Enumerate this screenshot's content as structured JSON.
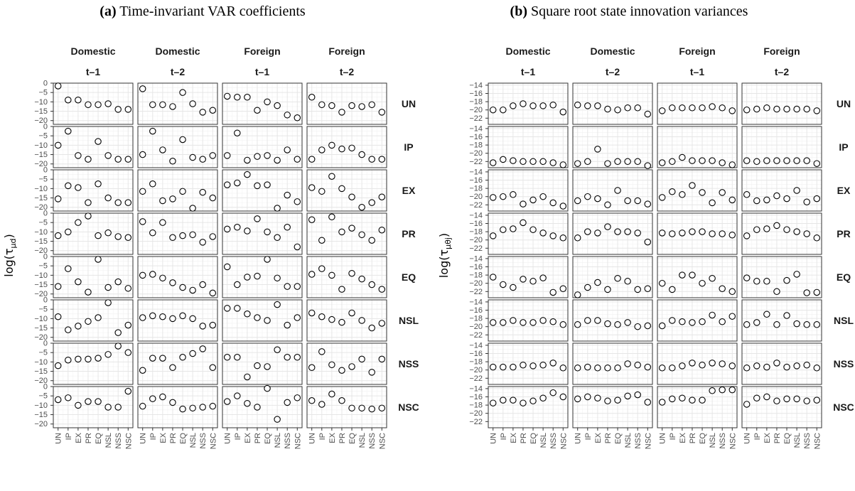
{
  "chart_data": [
    {
      "type": "scatter",
      "title_label": "(a)",
      "title": "Time-invariant VAR coefficients",
      "ylabel": "log(τμd)",
      "ylabel_base": "log(τ",
      "ylabel_sub": "μd",
      "ylabel_close": ")",
      "ylim": [
        -22,
        0
      ],
      "yticks": [
        0,
        -5,
        -10,
        -15,
        -20
      ],
      "col_groups": [
        "Domestic",
        "Domestic",
        "Foreign",
        "Foreign"
      ],
      "col_lags": [
        "t–1",
        "t–2",
        "t–1",
        "t–2"
      ],
      "rows": [
        "UN",
        "IP",
        "EX",
        "PR",
        "EQ",
        "NSL",
        "NSS",
        "NSC"
      ],
      "x": [
        "UN",
        "IP",
        "EX",
        "PR",
        "EQ",
        "NSL",
        "NSS",
        "NSC"
      ],
      "values": [
        [
          [
            -1.5,
            -9,
            -9,
            -11.5,
            -11.5,
            -11,
            -14,
            -14
          ],
          [
            -3,
            -11.5,
            -11.5,
            -12.5,
            -5,
            -11,
            -15.5,
            -14.5
          ],
          [
            -7,
            -7.5,
            -7.5,
            -14.5,
            -10,
            -12,
            -17,
            -18.5
          ],
          [
            -7.5,
            -11.5,
            -12,
            -15.5,
            -12,
            -12.5,
            -11.5,
            -15.5
          ]
        ],
        [
          [
            -10,
            -2.5,
            -15.5,
            -17.5,
            -8,
            -15.5,
            -17.5,
            -17.5
          ],
          [
            -15,
            -2.5,
            -12.5,
            -18.5,
            -7,
            -16.5,
            -17.5,
            -15.5
          ],
          [
            -15.5,
            -3.5,
            -18,
            -16,
            -15.5,
            -18,
            -12.5,
            -17.5
          ],
          [
            -17.5,
            -12.5,
            -10,
            -12,
            -11.5,
            -15,
            -17.5,
            -17.5
          ]
        ],
        [
          [
            -15.5,
            -8.5,
            -9.5,
            -17.5,
            -7.5,
            -15,
            -17.5,
            -17.5
          ],
          [
            -11.5,
            -7.5,
            -16.5,
            -15.5,
            -11.5,
            -20.5,
            -12,
            -15
          ],
          [
            -8,
            -7,
            -2.5,
            -8.5,
            -8,
            -20.5,
            -13.5,
            -17
          ],
          [
            -9.5,
            -11.5,
            -3.5,
            -10,
            -14.5,
            -20,
            -17.5,
            -14.5
          ]
        ],
        [
          [
            -12,
            -10,
            -5,
            -1.5,
            -12,
            -10.5,
            -12.5,
            -13
          ],
          [
            -4.5,
            -10.5,
            -5,
            -13,
            -12,
            -11.5,
            -15.5,
            -12.5
          ],
          [
            -8.5,
            -7.5,
            -9.5,
            -3,
            -10,
            -13,
            -7.5,
            -18
          ],
          [
            -3.5,
            -14.5,
            -2,
            -10,
            -8,
            -11.5,
            -14.5,
            -9
          ]
        ],
        [
          [
            -16,
            -6.5,
            -13.5,
            -19,
            -1.5,
            -16.5,
            -13.5,
            -17
          ],
          [
            -10,
            -9.5,
            -11.5,
            -14,
            -16.5,
            -18,
            -15,
            -19.5
          ],
          [
            -5.5,
            -15,
            -11,
            -10.5,
            -1.5,
            -11.5,
            -16,
            -16
          ],
          [
            -9.5,
            -6.5,
            -10,
            -17.5,
            -9,
            -12,
            -15,
            -17.5
          ]
        ],
        [
          [
            -9,
            -16,
            -14,
            -11.5,
            -9.5,
            -1.5,
            -17.5,
            -13.5
          ],
          [
            -9.5,
            -8.5,
            -9,
            -10,
            -8.5,
            -10,
            -14,
            -13.5
          ],
          [
            -4.5,
            -4.5,
            -7.5,
            -9.5,
            -11,
            -2.5,
            -13.5,
            -9.5
          ],
          [
            -7,
            -9,
            -10.5,
            -12,
            -7,
            -11,
            -15,
            -12.5
          ]
        ],
        [
          [
            -12,
            -9,
            -8.5,
            -8.5,
            -8,
            -6,
            -1.5,
            -5
          ],
          [
            -14.5,
            -8,
            -8,
            -13,
            -7.5,
            -5.5,
            -3,
            -13
          ],
          [
            -7.5,
            -7.5,
            -18,
            -12,
            -12.5,
            -3.5,
            -7.5,
            -7.5
          ],
          [
            -13,
            -4.5,
            -11.5,
            -14.5,
            -12.5,
            -8.5,
            -15.5,
            -8.5
          ]
        ],
        [
          [
            -7,
            -6,
            -10,
            -8,
            -8,
            -11,
            -11,
            -2.5
          ],
          [
            -10.5,
            -6.5,
            -5.5,
            -8.5,
            -12,
            -11.5,
            -11,
            -10.5
          ],
          [
            -8,
            -5,
            -9,
            -11,
            -1,
            -17.5,
            -8.5,
            -6
          ],
          [
            -7.5,
            -9.5,
            -4,
            -7.5,
            -11.5,
            -11.5,
            -12,
            -11.5
          ]
        ]
      ]
    },
    {
      "type": "scatter",
      "title_label": "(b)",
      "title": "Square root state innovation variances",
      "ylabel": "log(τμθj)",
      "ylabel_base": "log(τ",
      "ylabel_sub": "μθj",
      "ylabel_close": ")",
      "ylim": [
        -23.5,
        -13.5
      ],
      "yticks": [
        -14,
        -16,
        -18,
        -20,
        -22
      ],
      "col_groups": [
        "Domestic",
        "Domestic",
        "Foreign",
        "Foreign"
      ],
      "col_lags": [
        "t–1",
        "t–2",
        "t–1",
        "t–2"
      ],
      "rows": [
        "UN",
        "IP",
        "EX",
        "PR",
        "EQ",
        "NSL",
        "NSS",
        "NSC"
      ],
      "x": [
        "UN",
        "IP",
        "EX",
        "PR",
        "EQ",
        "NSL",
        "NSS",
        "NSC"
      ],
      "values": [
        [
          [
            -20,
            -20,
            -19,
            -18.5,
            -19,
            -19,
            -18.8,
            -20.5
          ],
          [
            -18.8,
            -19,
            -19,
            -19.8,
            -20,
            -19.5,
            -19.5,
            -21
          ],
          [
            -20.2,
            -19.5,
            -19.5,
            -19.5,
            -19.5,
            -19.2,
            -19.5,
            -20.2
          ],
          [
            -20,
            -19.8,
            -19.5,
            -19.8,
            -19.8,
            -19.8,
            -19.8,
            -20.2
          ]
        ],
        [
          [
            -22.3,
            -21.5,
            -21.8,
            -22,
            -22,
            -22,
            -22.3,
            -22.8
          ],
          [
            -22.5,
            -22,
            -19,
            -22.5,
            -22,
            -22,
            -22,
            -23
          ],
          [
            -22.3,
            -22,
            -21,
            -21.8,
            -21.8,
            -21.8,
            -22.3,
            -22.8
          ],
          [
            -21.8,
            -22,
            -21.8,
            -21.8,
            -21.8,
            -21.8,
            -21.8,
            -22.5
          ]
        ],
        [
          [
            -20.2,
            -20,
            -19.5,
            -21.8,
            -20.8,
            -20,
            -21.5,
            -22.3
          ],
          [
            -21,
            -20,
            -20.5,
            -22,
            -18.5,
            -21,
            -21,
            -21.8
          ],
          [
            -20.2,
            -18.8,
            -19.5,
            -17.3,
            -19,
            -21.5,
            -19,
            -20.8
          ],
          [
            -19.5,
            -21,
            -20.8,
            -19.8,
            -20.5,
            -18.5,
            -21.3,
            -20.5
          ]
        ],
        [
          [
            -19,
            -17.5,
            -17.3,
            -15.8,
            -17.5,
            -18.3,
            -19,
            -19.5
          ],
          [
            -19.5,
            -18,
            -18.3,
            -16.8,
            -18,
            -18,
            -18.3,
            -20.5
          ],
          [
            -18.3,
            -18.5,
            -18.3,
            -18,
            -18,
            -18.5,
            -18.5,
            -18.8
          ],
          [
            -19,
            -17.5,
            -17.3,
            -16.5,
            -17.5,
            -18,
            -18.5,
            -19.5
          ]
        ],
        [
          [
            -18.5,
            -20.3,
            -21,
            -19,
            -19.5,
            -18.7,
            -22.2,
            -21.3
          ],
          [
            -22.8,
            -21,
            -19.8,
            -21.5,
            -18.8,
            -19.5,
            -21.5,
            -21.3
          ],
          [
            -20,
            -21.5,
            -18,
            -18,
            -20,
            -18.8,
            -21.3,
            -22
          ],
          [
            -18.7,
            -19.5,
            -19.5,
            -22,
            -19.3,
            -17.8,
            -22.3,
            -22.2
          ]
        ],
        [
          [
            -19,
            -19,
            -18.5,
            -19,
            -19,
            -18.5,
            -18.8,
            -19.5
          ],
          [
            -19.5,
            -18.5,
            -18.5,
            -19.3,
            -19.5,
            -19,
            -20,
            -19.8
          ],
          [
            -19.8,
            -18.5,
            -18.8,
            -19,
            -18.8,
            -17.2,
            -18.8,
            -17.5
          ],
          [
            -19.5,
            -19,
            -17,
            -19.5,
            -17.3,
            -19.3,
            -19.5,
            -19.5
          ]
        ],
        [
          [
            -19.3,
            -19.3,
            -19.3,
            -18.8,
            -19,
            -18.8,
            -18.3,
            -19.5
          ],
          [
            -19.5,
            -19.3,
            -19.5,
            -19.5,
            -19.5,
            -18.5,
            -18.8,
            -19.3
          ],
          [
            -19.5,
            -19.5,
            -19,
            -18.3,
            -18.8,
            -18.3,
            -18.5,
            -19
          ],
          [
            -19.5,
            -19,
            -19.3,
            -18.3,
            -19.3,
            -19,
            -18.8,
            -19.5
          ]
        ],
        [
          [
            -17.5,
            -16.8,
            -16.8,
            -17.5,
            -17,
            -16.3,
            -15,
            -16
          ],
          [
            -16.5,
            -16,
            -16.3,
            -17,
            -16.8,
            -15.8,
            -15.5,
            -17.3
          ],
          [
            -17.3,
            -16.5,
            -16.3,
            -16.8,
            -16.8,
            -14.5,
            -14.3,
            -14.3
          ],
          [
            -17.8,
            -16.3,
            -16,
            -17,
            -16.5,
            -16.5,
            -17,
            -16.8
          ]
        ]
      ]
    }
  ]
}
